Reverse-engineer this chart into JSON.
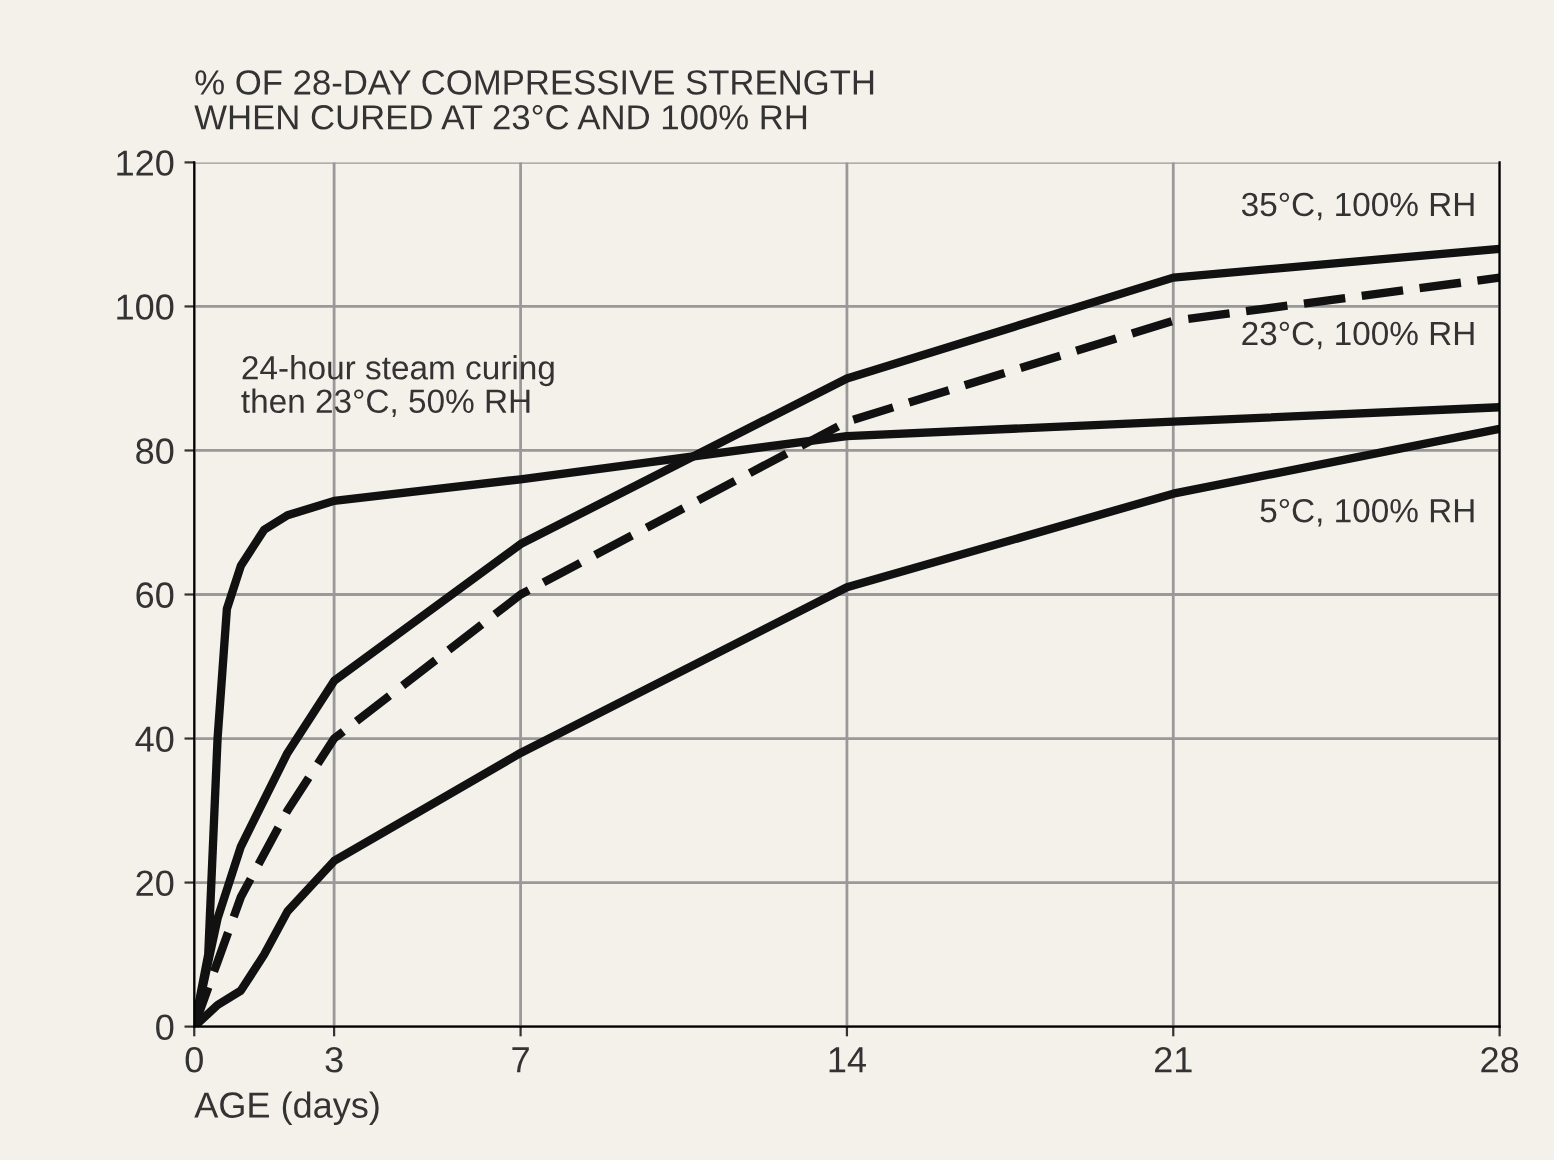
{
  "chart_data": {
    "type": "line",
    "ylabel": "% OF 28-DAY COMPRESSIVE STRENGTH\nWHEN CURED AT 23°C AND 100% RH",
    "xlabel": "AGE (days)",
    "xlim": [
      0,
      28
    ],
    "xticks": [
      0,
      3,
      7,
      14,
      21,
      28
    ],
    "ylim": [
      0,
      120
    ],
    "yticks": [
      0,
      20,
      40,
      60,
      80,
      100,
      120
    ],
    "grid": true,
    "legend": false,
    "marker": "none",
    "series": [
      {
        "name": "35°C, 100% RH",
        "color": "#111111",
        "x": [
          0,
          0.5,
          1,
          2,
          3,
          7,
          14,
          21,
          28
        ],
        "values": [
          0,
          15,
          25,
          38,
          48,
          67,
          90,
          104,
          108
        ]
      },
      {
        "name": "23°C, 100% RH",
        "color": "#111111",
        "line_style": "dashed",
        "x": [
          0,
          0.5,
          1,
          2,
          3,
          7,
          14,
          21,
          28
        ],
        "values": [
          0,
          9,
          18,
          30,
          40,
          60,
          84,
          98,
          104
        ]
      },
      {
        "name": "24-hour steam curing\nthen 23°C, 50% RH",
        "color": "#111111",
        "x": [
          0,
          0.3,
          0.5,
          0.7,
          1,
          1.5,
          2,
          3,
          7,
          14,
          21,
          28
        ],
        "values": [
          0,
          10,
          40,
          58,
          64,
          69,
          71,
          73,
          76,
          82,
          84,
          86
        ]
      },
      {
        "name": "5°C, 100% RH",
        "color": "#111111",
        "x": [
          0,
          0.5,
          1,
          1.5,
          2,
          3,
          7,
          14,
          21,
          28
        ],
        "values": [
          0,
          3,
          5,
          10,
          16,
          23,
          38,
          61,
          74,
          83
        ]
      }
    ]
  }
}
